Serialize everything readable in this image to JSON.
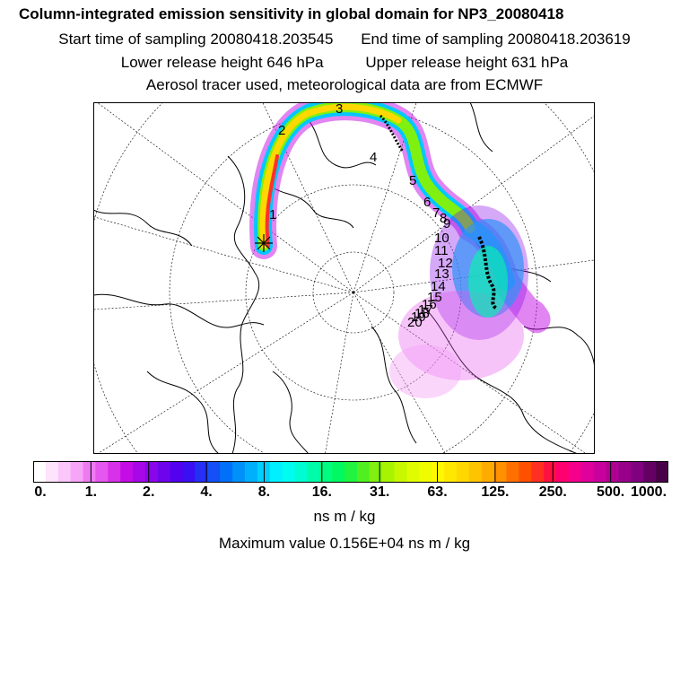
{
  "header": {
    "title": "Column-integrated emission sensitivity in global domain for NP3_20080418",
    "start_label": "Start time of sampling 20080418.203545",
    "end_label": "End time of sampling 20080418.203619",
    "lower_label": "Lower release height  646 hPa",
    "upper_label": "Upper release height  631 hPa",
    "tracer_label": "Aerosol tracer used, meteorological data are from ECMWF"
  },
  "map": {
    "projection": "polar stereographic",
    "day_markers": [
      "1",
      "2",
      "3",
      "4",
      "5",
      "6",
      "7",
      "8",
      "9",
      "10",
      "11",
      "12",
      "13",
      "14",
      "15",
      "16",
      "17",
      "18",
      "19",
      "20"
    ],
    "release_marker": "release-site-cross"
  },
  "colorbar": {
    "tick_labels": [
      "0.",
      "1.",
      "2.",
      "4.",
      "8.",
      "16.",
      "31.",
      "63.",
      "125.",
      "250.",
      "500.",
      "1000."
    ],
    "colors": [
      "#ffffff",
      "#fde3fc",
      "#fbc6fa",
      "#f6a5f7",
      "#ef7bf2",
      "#e557ee",
      "#d831ea",
      "#c40ce6",
      "#a608e8",
      "#8a06ea",
      "#6e04ec",
      "#5202ee",
      "#3a10f2",
      "#2630f4",
      "#1450f6",
      "#0070f8",
      "#0090fa",
      "#00b0fc",
      "#00d0fe",
      "#00f0ff",
      "#00fcf0",
      "#00fcd0",
      "#00fca8",
      "#00fc80",
      "#00f860",
      "#20f440",
      "#50f020",
      "#80f010",
      "#a8f400",
      "#c8f800",
      "#e0fc00",
      "#f0fc00",
      "#fff800",
      "#ffe800",
      "#ffd800",
      "#ffc400",
      "#ffac00",
      "#ff9000",
      "#ff7000",
      "#ff5000",
      "#ff3020",
      "#ff1040",
      "#ff0070",
      "#f4008c",
      "#e0009c",
      "#c8009c",
      "#b00094",
      "#98008a",
      "#800080",
      "#640064",
      "#480048"
    ]
  },
  "units": "ns m / kg",
  "max_value_label": "Maximum value  0.156E+04 ns m / kg"
}
